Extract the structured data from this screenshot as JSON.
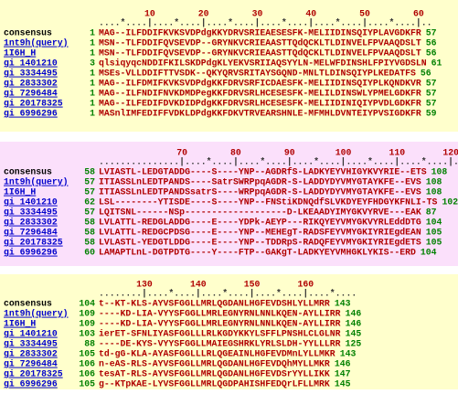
{
  "blocks": [
    {
      "ticks": [
        "10",
        "20",
        "30",
        "40",
        "50",
        "60"
      ],
      "ruler": "....*....|....*....|....*....|....*....|....*....|....*....|..",
      "rows": [
        {
          "name": "consensus",
          "start": "1",
          "seq": "MAG--ILFDDIFKVKSVDPdgKKYDRVSRIEAESESFK-MELIIDINSQIYPLAVGDKFR",
          "end": "57"
        },
        {
          "name": "1nt9h(query)",
          "start": "1",
          "seq": "MSN--TLFDDIFQVSEVDP--GRYNKVCRIEAASTTQdQCKLTLDINVELFPVAAQDSLT",
          "end": "56"
        },
        {
          "name": "1I6H_H",
          "start": "1",
          "seq": "MSN--TLFDDIFQVSEVDP--GRYNKVCRIEAASTTQdQCKLTLDINVELFPVAAQDSLT",
          "end": "56"
        },
        {
          "name": "gi 1401210",
          "start": "3",
          "seq": "qlsiqyqcNDDIFKILSKDPdgKLYEKVSRIIAQSYYLN-MELWFDINSHLFPIYVGDSLN",
          "end": "61"
        },
        {
          "name": "gi 3334495",
          "start": "1",
          "seq": "MSEs-VLLDDIFTTVSDK--QKYQRVSRITAYSGQND-MNLTLDINSQIYPLKEDATFS",
          "end": "56"
        },
        {
          "name": "gi 2833302",
          "start": "1",
          "seq": "MAG--ILFDMIFKVKSVDPdgKKFDRVSRFICDAESFK-MELIIDINSQIYPLKQNDKVR",
          "end": "57"
        },
        {
          "name": "gi 7296484",
          "start": "1",
          "seq": "MAG--ILFNDIFNVKDMDPegKKFDRVSRLHCESESFK-MELILDINSWLYPMELGDKFR",
          "end": "57"
        },
        {
          "name": "gi 20178325",
          "start": "1",
          "seq": "MAG--ILFEDIFDVKDIDPdgKKFDRVSRLHCESESFK-MELIIDINIQIYPVDLGDKFR",
          "end": "57"
        },
        {
          "name": "gi 6996296",
          "start": "1",
          "seq": "MASnlIMFEDIFFVDKLDPdgKKFDKVTRVEARSHNLE-MFMHLDVNTEIYPVSIGDKFR",
          "end": "59"
        }
      ]
    },
    {
      "ticks": [
        "70",
        "80",
        "90",
        "100",
        "110",
        "120"
      ],
      "ruler": "...............|....*....|....*....|....*....|....*....|....*....|....",
      "rows": [
        {
          "name": "consensus",
          "start": "58",
          "seq": "LVIASTL-LEDGTADDG----S----YNP--AGDRfS-LADKYEYVHIGYKVYRIE--ETS",
          "end": "108"
        },
        {
          "name": "1nt9h(query)",
          "start": "57",
          "seq": "ITIASSLnLEDTPANDS----SatrSWRPpqAGDR-S-LADDYDYVMYGTAYKFE--EVS",
          "end": "108"
        },
        {
          "name": "1I6H_H",
          "start": "57",
          "seq": "ITIASSLnLEDTPANDSsatrS----WRPpqAGDR-S-LADDYDYVMYGTAYKFE--EVS",
          "end": "108"
        },
        {
          "name": "gi 1401210",
          "start": "62",
          "seq": "LSL--------YTISDE----S----YNP--FNStiKDNQdfSLVKDYEYFHDGYKFNLI-TS",
          "end": "102"
        },
        {
          "name": "gi 3334495",
          "start": "57",
          "seq": "LQITSNL------NSp-------------------D-LKEAADYIMYGKVYRVE---EAK",
          "end": "87"
        },
        {
          "name": "gi 2833302",
          "start": "58",
          "seq": "LVLATTL-REDGLADDG----E----YDPk-AEYP---RIKQYEYVMYGKVYRLEddDTG",
          "end": "104"
        },
        {
          "name": "gi 7296484",
          "start": "58",
          "seq": "LVLATTL-REDGCPDSG----E----YNP--MEHEgT-RADSFEYVMYGKIYRIEgdEAN",
          "end": "105"
        },
        {
          "name": "gi 20178325",
          "start": "58",
          "seq": "LVLASTL-YEDGTLDDG----E----YNP--TDDRpS-RADQFEYVMYGKIYRIEgdETS",
          "end": "105"
        },
        {
          "name": "gi 6996296",
          "start": "60",
          "seq": "LAMAPTLnL-DGTPDTG----Y----FTP--GAKgT-LADKYEYVMHGKLYKIS--ERD",
          "end": "104"
        }
      ]
    },
    {
      "ticks": [
        "130",
        "140",
        "150",
        "160"
      ],
      "ruler": "........|....*....|....*....|....*....|....*....",
      "rows": [
        {
          "name": "consensus",
          "start": "104",
          "seq": "t--KT-KLS-AYVSFGGLLMRLQGDANLHGFEVDSHLYLLMRR",
          "end": "143"
        },
        {
          "name": "1nt9h(query)",
          "start": "109",
          "seq": "----KD-LIA-VYYSFGGLLMRLEGNYRNLNNLKQEN-AYLLIRR",
          "end": "146"
        },
        {
          "name": "1I6H_H",
          "start": "109",
          "seq": "----KD-LIA-VYYSFGGLLMRLEGNYRNLNNLKQEN-AYLLIRR",
          "end": "146"
        },
        {
          "name": "gi 1401210",
          "start": "103",
          "seq": "ierET-SFNLIYASFGGLLLRLKGDYKKYLSFFLPNSHLCLGLNR",
          "end": "145"
        },
        {
          "name": "gi 3334495",
          "start": "88",
          "seq": "----DE-KYS-VYYSFGGLLMAIEGSHRKLYRLSLDH-YYLLLRR",
          "end": "125"
        },
        {
          "name": "gi 2833302",
          "start": "105",
          "seq": "td-gG-KLA-AYASFGGLLLRLQGEAINLHGFEVDMnLYLLMKR",
          "end": "143"
        },
        {
          "name": "gi 7296484",
          "start": "106",
          "seq": "n-eAS-RLS-AYVSFGGLLMRLQGDANLHGFEVDQhMYLLMKR",
          "end": "146"
        },
        {
          "name": "gi 20178325",
          "start": "106",
          "seq": "tesAT-RLS-AYVSFGGLLMRLQGDANLHGFEVDSrYYLLIKK",
          "end": "147"
        },
        {
          "name": "gi 6996296",
          "start": "105",
          "seq": "g--KTpKAE-LYVSFGGLLMRLQGDPAHISHFEDQrLFLLMRK",
          "end": "145"
        }
      ]
    }
  ]
}
